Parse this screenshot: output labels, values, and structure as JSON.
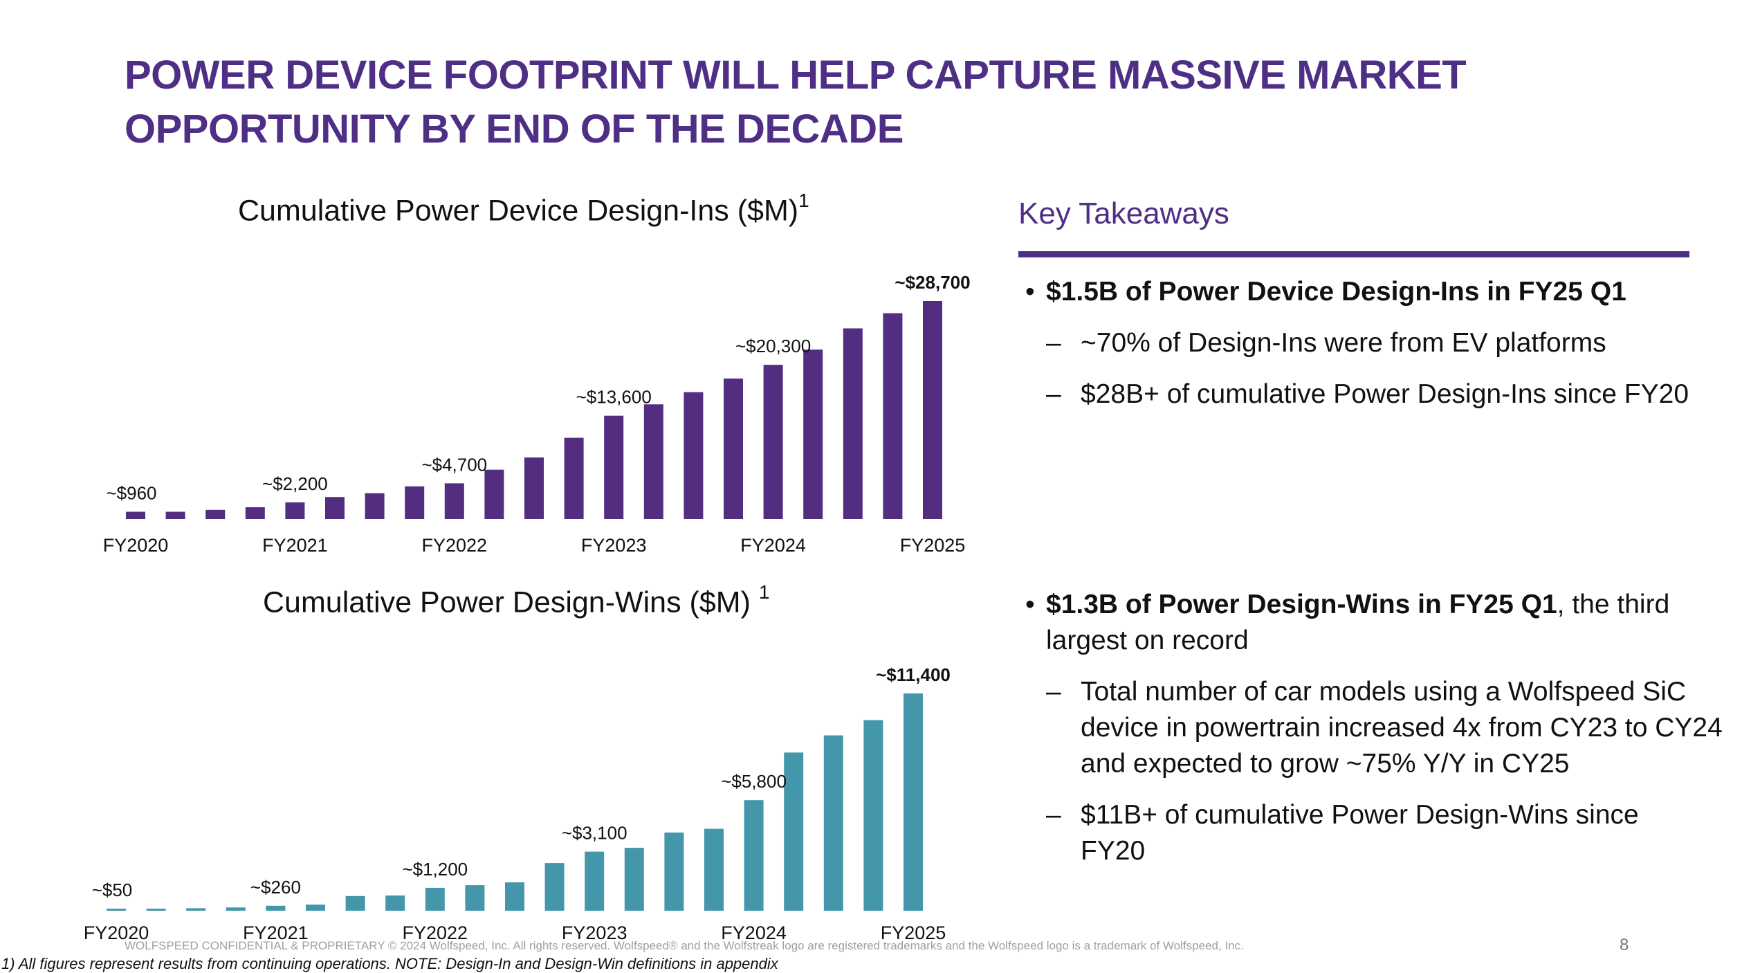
{
  "slide": {
    "title_line1": "POWER DEVICE FOOTPRINT WILL HELP CAPTURE MASSIVE MARKET",
    "title_line2": "OPPORTUNITY BY END OF THE DECADE",
    "page_number": "8",
    "legal": "WOLFSPEED CONFIDENTIAL & PROPRIETARY © 2024 Wolfspeed, Inc. All rights reserved. Wolfspeed® and the Wolfstreak logo are registered trademarks and the Wolfspeed logo is a trademark of Wolfspeed, Inc.",
    "footnote": "1) All figures represent results from continuing operations. NOTE: Design-In and Design-Win definitions in appendix"
  },
  "chart_data": [
    {
      "type": "bar",
      "title": "Cumulative Power Device Design-Ins ($M)",
      "title_sup": "1",
      "color": "#522d80",
      "values": [
        960,
        960,
        1200,
        1550,
        2200,
        2900,
        3400,
        4300,
        4700,
        6500,
        8100,
        10700,
        13600,
        15100,
        16700,
        18500,
        20300,
        22300,
        25100,
        27100,
        28700
      ],
      "x_tick_labels": [
        {
          "label": "FY2020",
          "index": 0
        },
        {
          "label": "FY2021",
          "index": 4
        },
        {
          "label": "FY2022",
          "index": 8
        },
        {
          "label": "FY2023",
          "index": 12
        },
        {
          "label": "FY2024",
          "index": 16
        },
        {
          "label": "FY2025",
          "index": 20
        }
      ],
      "data_labels": [
        {
          "index": 0,
          "text": "~$960",
          "bold": false
        },
        {
          "index": 4,
          "text": "~$2,200",
          "bold": false
        },
        {
          "index": 8,
          "text": "~$4,700",
          "bold": false
        },
        {
          "index": 12,
          "text": "~$13,600",
          "bold": false
        },
        {
          "index": 16,
          "text": "~$20,300",
          "bold": false
        },
        {
          "index": 20,
          "text": "~$28,700",
          "bold": true
        }
      ],
      "ylim": [
        0,
        28700
      ]
    },
    {
      "type": "bar",
      "title": "Cumulative Power Design-Wins ($M)",
      "title_sup": "1",
      "color": "#4497aa",
      "values": [
        50,
        90,
        130,
        170,
        260,
        320,
        770,
        800,
        1200,
        1340,
        1490,
        2500,
        3100,
        3300,
        4100,
        4300,
        5800,
        8300,
        9200,
        10000,
        11400
      ],
      "x_tick_labels": [
        {
          "label": "FY2020",
          "index": 0
        },
        {
          "label": "FY2021",
          "index": 4
        },
        {
          "label": "FY2022",
          "index": 8
        },
        {
          "label": "FY2023",
          "index": 12
        },
        {
          "label": "FY2024",
          "index": 16
        },
        {
          "label": "FY2025",
          "index": 20
        }
      ],
      "data_labels": [
        {
          "index": 0,
          "text": "~$50",
          "bold": false
        },
        {
          "index": 4,
          "text": "~$260",
          "bold": false
        },
        {
          "index": 8,
          "text": "~$1,200",
          "bold": false
        },
        {
          "index": 12,
          "text": "~$3,100",
          "bold": false
        },
        {
          "index": 16,
          "text": "~$5,800",
          "bold": false
        },
        {
          "index": 20,
          "text": "~$11,400",
          "bold": true
        }
      ],
      "ylim": [
        0,
        11400
      ]
    }
  ],
  "takeaways": {
    "header": "Key Takeaways",
    "bullet1_bold": "$1.5B of Power Device Design-Ins in FY25 Q1",
    "bullet1_subs": [
      "~70% of Design-Ins were from EV platforms",
      "$28B+ of cumulative Power Design-Ins since FY20"
    ],
    "bullet2_bold": "$1.3B of Power Design-Wins in FY25 Q1",
    "bullet2_rest": ", the third largest on record",
    "bullet2_subs": [
      "Total number of car models using a Wolfspeed SiC device in powertrain increased 4x from CY23 to CY24 and expected to grow ~75% Y/Y in CY25",
      "$11B+ of cumulative Power Design-Wins since FY20"
    ],
    "bullet_glyph": "•",
    "dash_glyph": "–"
  }
}
